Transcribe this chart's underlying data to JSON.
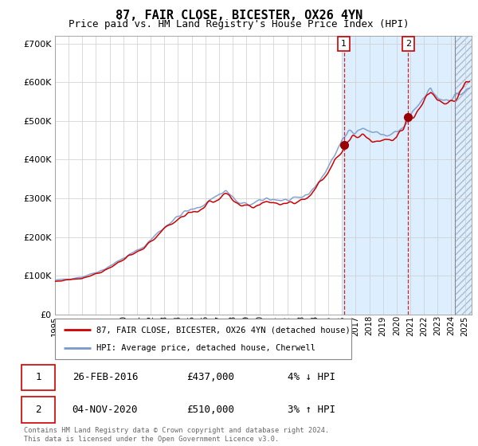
{
  "title": "87, FAIR CLOSE, BICESTER, OX26 4YN",
  "subtitle": "Price paid vs. HM Land Registry's House Price Index (HPI)",
  "legend_line1": "87, FAIR CLOSE, BICESTER, OX26 4YN (detached house)",
  "legend_line2": "HPI: Average price, detached house, Cherwell",
  "transaction1_date": "26-FEB-2016",
  "transaction1_price": "£437,000",
  "transaction1_hpi": "4% ↓ HPI",
  "transaction2_date": "04-NOV-2020",
  "transaction2_price": "£510,000",
  "transaction2_hpi": "3% ↑ HPI",
  "footer": "Contains HM Land Registry data © Crown copyright and database right 2024.\nThis data is licensed under the Open Government Licence v3.0.",
  "hpi_color": "#7799cc",
  "price_color": "#cc0000",
  "point_color": "#990000",
  "shade_color": "#ddeeff",
  "grid_color": "#cccccc",
  "ylim": [
    0,
    720000
  ],
  "yticks": [
    0,
    100000,
    200000,
    300000,
    400000,
    500000,
    600000,
    700000
  ],
  "ytick_labels": [
    "£0",
    "£100K",
    "£200K",
    "£300K",
    "£400K",
    "£500K",
    "£600K",
    "£700K"
  ],
  "transaction1_x": 2016.15,
  "transaction1_y": 437000,
  "transaction2_x": 2020.84,
  "transaction2_y": 510000,
  "xmin": 1995.0,
  "xmax": 2025.5,
  "shade_start": 2016.0,
  "hatch_start": 2024.25
}
